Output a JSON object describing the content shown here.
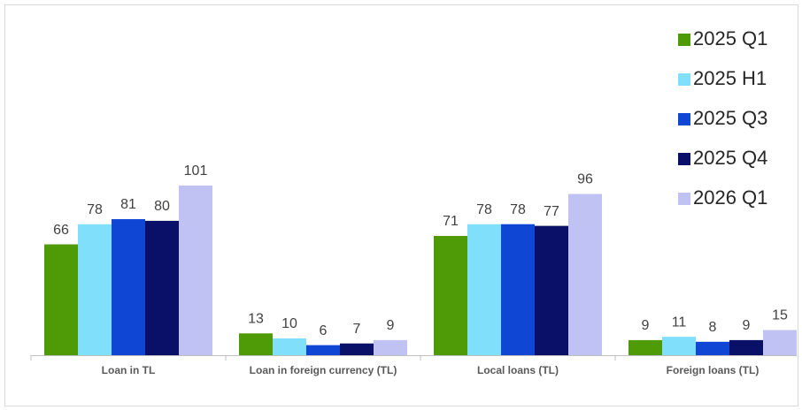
{
  "chart_data": {
    "type": "bar",
    "categories": [
      "Loan in TL",
      "Loan in foreign currency (TL)",
      "Local loans (TL)",
      "Foreign loans (TL)"
    ],
    "series": [
      {
        "name": "2025 Q1",
        "color": "#4f9a07",
        "values": [
          66,
          13,
          71,
          9
        ]
      },
      {
        "name": "2025 H1",
        "color": "#80e0fb",
        "values": [
          78,
          10,
          78,
          11
        ]
      },
      {
        "name": "2025 Q3",
        "color": "#0f47d4",
        "values": [
          81,
          6,
          78,
          8
        ]
      },
      {
        "name": "2025 Q4",
        "color": "#0a0f68",
        "values": [
          80,
          7,
          77,
          9
        ]
      },
      {
        "name": "2026 Q1",
        "color": "#c0c2f4",
        "values": [
          101,
          9,
          96,
          15
        ]
      }
    ],
    "legend": "upper right"
  }
}
